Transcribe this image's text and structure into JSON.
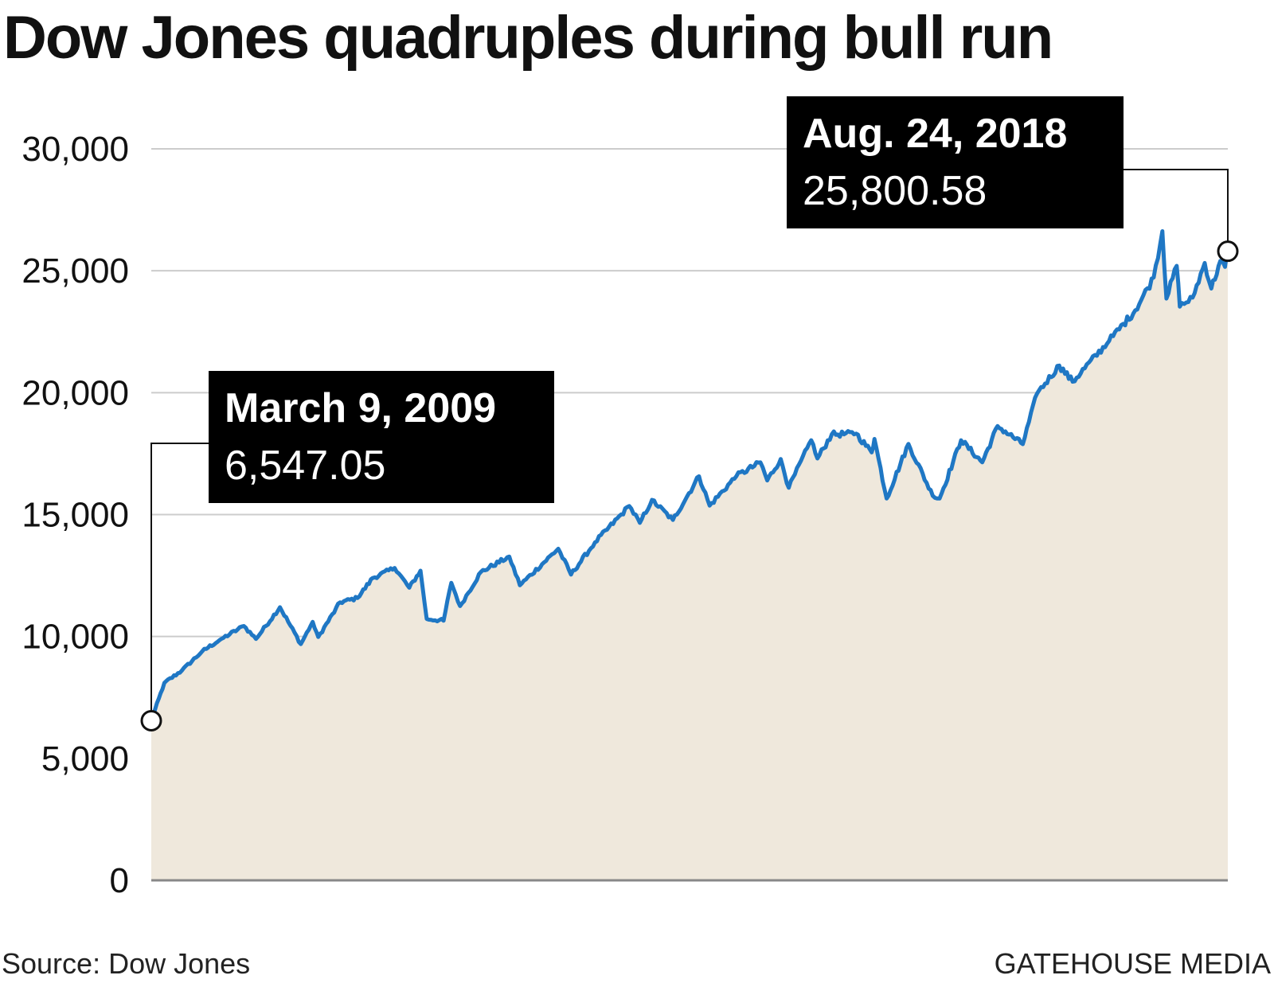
{
  "title": "Dow Jones quadruples during bull run",
  "source": "Source: Dow Jones",
  "credit": "GATEHOUSE MEDIA",
  "colors": {
    "line": "#1f77c4",
    "area_fill": "#efe8dc",
    "gridline": "#cccccc",
    "callout_box": "#000000",
    "callout_text": "#ffffff"
  },
  "chart_data": {
    "type": "line",
    "title": "Dow Jones quadruples during bull run",
    "xlabel": "",
    "ylabel": "",
    "ylim": [
      0,
      30000
    ],
    "y_ticks": [
      0,
      5000,
      10000,
      15000,
      20000,
      25000,
      30000
    ],
    "y_tick_labels": [
      "0",
      "5,000",
      "10,000",
      "15,000",
      "20,000",
      "25,000",
      "30,000"
    ],
    "grid": true,
    "area_filled": true,
    "xlim": [
      "2009-03-09",
      "2018-08-24"
    ],
    "series": [
      {
        "x": [
          "2009-03-09",
          "2009-04-20",
          "2009-06-15",
          "2009-08-20",
          "2009-10-20",
          "2009-12-31",
          "2010-02-08",
          "2010-04-26",
          "2010-07-02",
          "2010-08-09",
          "2010-08-27",
          "2010-11-05",
          "2010-12-31",
          "2011-02-18",
          "2011-04-29",
          "2011-06-15",
          "2011-07-21",
          "2011-08-10",
          "2011-10-03",
          "2011-10-28",
          "2011-11-25",
          "2012-01-31",
          "2012-05-01",
          "2012-06-04",
          "2012-10-05",
          "2012-11-15",
          "2013-01-31",
          "2013-05-21",
          "2013-06-24",
          "2013-08-02",
          "2013-10-08",
          "2013-12-31",
          "2014-02-03",
          "2014-04-30",
          "2014-07-16",
          "2014-08-07",
          "2014-09-19",
          "2014-10-15",
          "2014-12-26",
          "2015-01-15",
          "2015-03-02",
          "2015-05-19",
          "2015-07-08",
          "2015-07-17",
          "2015-08-25",
          "2015-11-03",
          "2016-01-20",
          "2016-02-11",
          "2016-04-20",
          "2016-06-27",
          "2016-08-15",
          "2016-11-04",
          "2016-12-20",
          "2017-03-01",
          "2017-04-13",
          "2017-08-08",
          "2017-10-31",
          "2017-12-29",
          "2018-01-26",
          "2018-02-08",
          "2018-03-13",
          "2018-03-23",
          "2018-05-03",
          "2018-06-11",
          "2018-07-02",
          "2018-07-31",
          "2018-08-15",
          "2018-08-24"
        ],
        "values": [
          6547.05,
          8100,
          8600,
          9400,
          9900,
          10430,
          9900,
          11200,
          9690,
          10600,
          9980,
          11400,
          11580,
          12400,
          12810,
          12000,
          12700,
          10720,
          10650,
          12200,
          11250,
          12650,
          13280,
          12100,
          13600,
          12540,
          13860,
          15350,
          14660,
          15600,
          14780,
          16570,
          15370,
          16580,
          17140,
          16400,
          17280,
          16100,
          18050,
          17300,
          18290,
          18320,
          17550,
          18100,
          15660,
          17900,
          15770,
          15660,
          18050,
          17140,
          18630,
          17890,
          19970,
          21110,
          20450,
          22120,
          23380,
          24720,
          26620,
          23860,
          25200,
          23530,
          23900,
          25320,
          24270,
          25400,
          25160,
          25800.58
        ]
      }
    ],
    "annotations": [
      {
        "date": "March 9, 2009",
        "value_label": "6,547.05",
        "x": "2009-03-09",
        "y": 6547.05
      },
      {
        "date": "Aug. 24, 2018",
        "value_label": "25,800.58",
        "x": "2018-08-24",
        "y": 25800.58
      }
    ]
  }
}
